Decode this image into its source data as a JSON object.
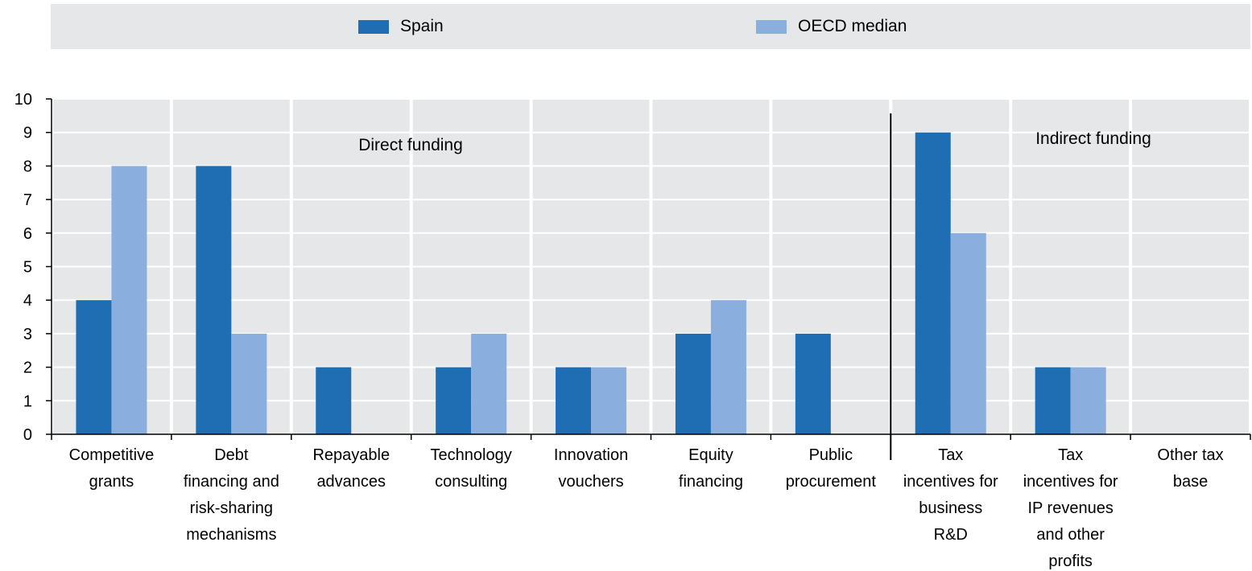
{
  "legend": {
    "spain_label": "Spain",
    "oecd_label": "OECD median"
  },
  "colors": {
    "spain": "#1f6eb4",
    "oecd": "#8aaedd",
    "band": "#e6e7e9",
    "grid": "#ffffff"
  },
  "chart_data": {
    "type": "bar",
    "categories": [
      [
        "Competitive",
        "grants"
      ],
      [
        "Debt",
        "financing and",
        "risk-sharing",
        "mechanisms"
      ],
      [
        "Repayable",
        "advances"
      ],
      [
        "Technology",
        "consulting"
      ],
      [
        "Innovation",
        "vouchers"
      ],
      [
        "Equity",
        "financing"
      ],
      [
        "Public",
        "procurement"
      ],
      [
        "Tax",
        "incentives for",
        "business",
        "R&D"
      ],
      [
        "Tax",
        "incentives for",
        "IP revenues",
        "and other",
        "profits"
      ],
      [
        "Other tax",
        "base"
      ]
    ],
    "series": [
      {
        "name": "Spain",
        "values": [
          4,
          8,
          2,
          2,
          2,
          3,
          3,
          9,
          2,
          0
        ]
      },
      {
        "name": "OECD median",
        "values": [
          8,
          3,
          0,
          3,
          2,
          4,
          0,
          6,
          2,
          0
        ]
      }
    ],
    "ylim": [
      0,
      10
    ],
    "yticks": [
      0,
      1,
      2,
      3,
      4,
      5,
      6,
      7,
      8,
      9,
      10
    ],
    "annotations": [
      "Direct funding",
      "Indirect funding"
    ],
    "grid": true,
    "legend_position": "top"
  }
}
